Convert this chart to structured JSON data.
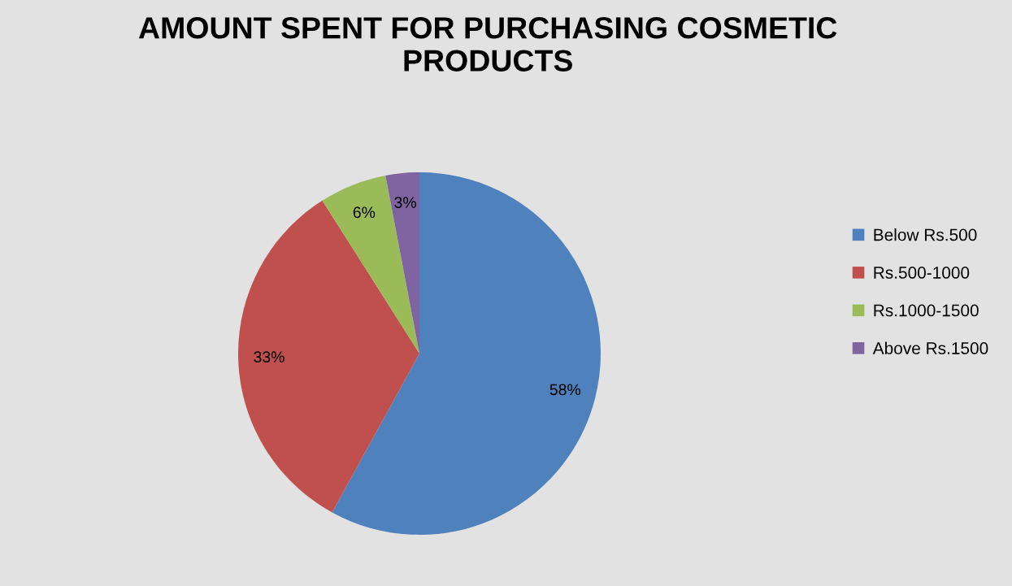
{
  "chart_data": {
    "type": "pie",
    "title": "AMOUNT SPENT FOR PURCHASING COSMETIC PRODUCTS",
    "categories": [
      "Below Rs.500",
      "Rs.500-1000",
      "Rs.1000-1500",
      "Above Rs.1500"
    ],
    "values": [
      58,
      33,
      6,
      3
    ],
    "value_labels": [
      "58%",
      "33%",
      "6%",
      "3%"
    ],
    "colors": [
      "#4f81bd",
      "#c0504d",
      "#9bbb59",
      "#8064a2"
    ],
    "legend": "right"
  }
}
